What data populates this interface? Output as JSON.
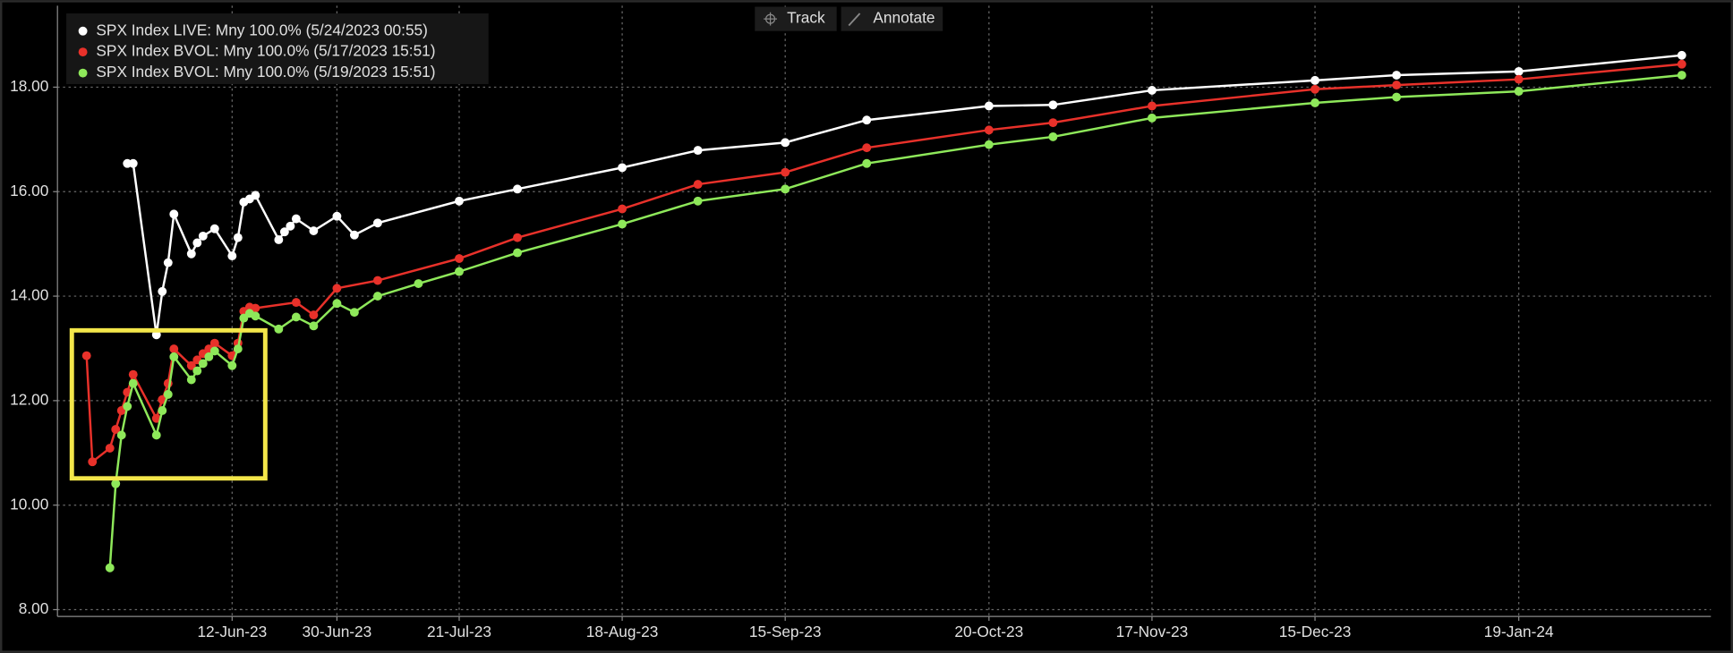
{
  "toolbar": {
    "buttons": [
      "Track",
      "Annotate"
    ]
  },
  "chart_data": {
    "type": "line",
    "legend": "upper left",
    "grid": true,
    "xlim": [
      "2023-05-13",
      "2024-02-21"
    ],
    "xticks": [
      {
        "value": "2023-06-12",
        "label": "12-Jun-23"
      },
      {
        "value": "2023-06-30",
        "label": "30-Jun-23"
      },
      {
        "value": "2023-07-21",
        "label": "21-Jul-23"
      },
      {
        "value": "2023-08-18",
        "label": "18-Aug-23"
      },
      {
        "value": "2023-09-15",
        "label": "15-Sep-23"
      },
      {
        "value": "2023-10-20",
        "label": "20-Oct-23"
      },
      {
        "value": "2023-11-17",
        "label": "17-Nov-23"
      },
      {
        "value": "2023-12-15",
        "label": "15-Dec-23"
      },
      {
        "value": "2024-01-19",
        "label": "19-Jan-24"
      }
    ],
    "ylim": [
      7.87,
      19.56
    ],
    "yticks": [
      {
        "value": 8,
        "label": "8.00"
      },
      {
        "value": 10,
        "label": "10.00"
      },
      {
        "value": 12,
        "label": "12.00"
      },
      {
        "value": 14,
        "label": "14.00"
      },
      {
        "value": 16,
        "label": "16.00"
      },
      {
        "value": 18,
        "label": "18.00"
      }
    ],
    "series": [
      {
        "name": "SPX Index LIVE: Mny 100.0% (5/24/2023 00:55)",
        "color": "#ffffff",
        "x": [
          "2023-05-25",
          "2023-05-26",
          "2023-05-30",
          "2023-05-31",
          "2023-06-01",
          "2023-06-02",
          "2023-06-05",
          "2023-06-06",
          "2023-06-07",
          "2023-06-09",
          "2023-06-12",
          "2023-06-13",
          "2023-06-14",
          "2023-06-15",
          "2023-06-16",
          "2023-06-20",
          "2023-06-21",
          "2023-06-22",
          "2023-06-23",
          "2023-06-26",
          "2023-06-30",
          "2023-07-03",
          "2023-07-07",
          "2023-07-21",
          "2023-07-31",
          "2023-08-18",
          "2023-08-31",
          "2023-09-15",
          "2023-09-29",
          "2023-10-20",
          "2023-10-31",
          "2023-11-17",
          "2023-12-15",
          "2023-12-29",
          "2024-01-19",
          "2024-02-16"
        ],
        "values": [
          16.54,
          16.54,
          13.26,
          14.09,
          14.64,
          15.57,
          14.81,
          15.02,
          15.15,
          15.29,
          14.77,
          15.12,
          15.8,
          15.86,
          15.93,
          15.08,
          15.23,
          15.34,
          15.48,
          15.25,
          15.53,
          15.17,
          15.4,
          15.82,
          16.05,
          16.46,
          16.79,
          16.94,
          17.37,
          17.64,
          17.66,
          17.94,
          18.13,
          18.23,
          18.3,
          18.61
        ]
      },
      {
        "name": "SPX Index BVOL: Mny 100.0% (5/17/2023 15:51)",
        "color": "#e8312a",
        "x": [
          "2023-05-18",
          "2023-05-19",
          "2023-05-22",
          "2023-05-23",
          "2023-05-24",
          "2023-05-25",
          "2023-05-26",
          "2023-05-30",
          "2023-05-31",
          "2023-06-01",
          "2023-06-02",
          "2023-06-05",
          "2023-06-06",
          "2023-06-07",
          "2023-06-08",
          "2023-06-09",
          "2023-06-12",
          "2023-06-13",
          "2023-06-14",
          "2023-06-15",
          "2023-06-16",
          "2023-06-23",
          "2023-06-26",
          "2023-06-30",
          "2023-07-07",
          "2023-07-21",
          "2023-07-31",
          "2023-08-18",
          "2023-08-31",
          "2023-09-15",
          "2023-09-29",
          "2023-10-20",
          "2023-10-31",
          "2023-11-17",
          "2023-12-15",
          "2023-12-29",
          "2024-01-19",
          "2024-02-16"
        ],
        "values": [
          12.86,
          10.83,
          11.09,
          11.45,
          11.81,
          12.16,
          12.5,
          11.66,
          12.02,
          12.33,
          12.99,
          12.67,
          12.78,
          12.9,
          12.99,
          13.1,
          12.86,
          13.1,
          13.71,
          13.79,
          13.77,
          13.88,
          13.64,
          14.15,
          14.3,
          14.72,
          15.12,
          15.67,
          16.14,
          16.37,
          16.84,
          17.18,
          17.32,
          17.64,
          17.96,
          18.04,
          18.15,
          18.44
        ]
      },
      {
        "name": "SPX Index BVOL: Mny 100.0% (5/19/2023 15:51)",
        "color": "#8ee85a",
        "x": [
          "2023-05-22",
          "2023-05-23",
          "2023-05-24",
          "2023-05-25",
          "2023-05-26",
          "2023-05-30",
          "2023-05-31",
          "2023-06-01",
          "2023-06-02",
          "2023-06-05",
          "2023-06-06",
          "2023-06-07",
          "2023-06-08",
          "2023-06-09",
          "2023-06-12",
          "2023-06-13",
          "2023-06-14",
          "2023-06-15",
          "2023-06-16",
          "2023-06-20",
          "2023-06-23",
          "2023-06-26",
          "2023-06-30",
          "2023-07-03",
          "2023-07-07",
          "2023-07-14",
          "2023-07-21",
          "2023-07-31",
          "2023-08-18",
          "2023-08-31",
          "2023-09-15",
          "2023-09-29",
          "2023-10-20",
          "2023-10-31",
          "2023-11-17",
          "2023-12-15",
          "2023-12-29",
          "2024-01-19",
          "2024-02-16"
        ],
        "values": [
          8.8,
          10.41,
          11.34,
          11.89,
          12.33,
          11.34,
          11.81,
          12.12,
          12.84,
          12.4,
          12.57,
          12.71,
          12.84,
          12.95,
          12.67,
          12.99,
          13.58,
          13.67,
          13.62,
          13.37,
          13.6,
          13.43,
          13.86,
          13.69,
          14.0,
          14.24,
          14.47,
          14.83,
          15.38,
          15.82,
          16.05,
          16.54,
          16.9,
          17.05,
          17.41,
          17.7,
          17.81,
          17.92,
          18.23
        ]
      }
    ]
  }
}
